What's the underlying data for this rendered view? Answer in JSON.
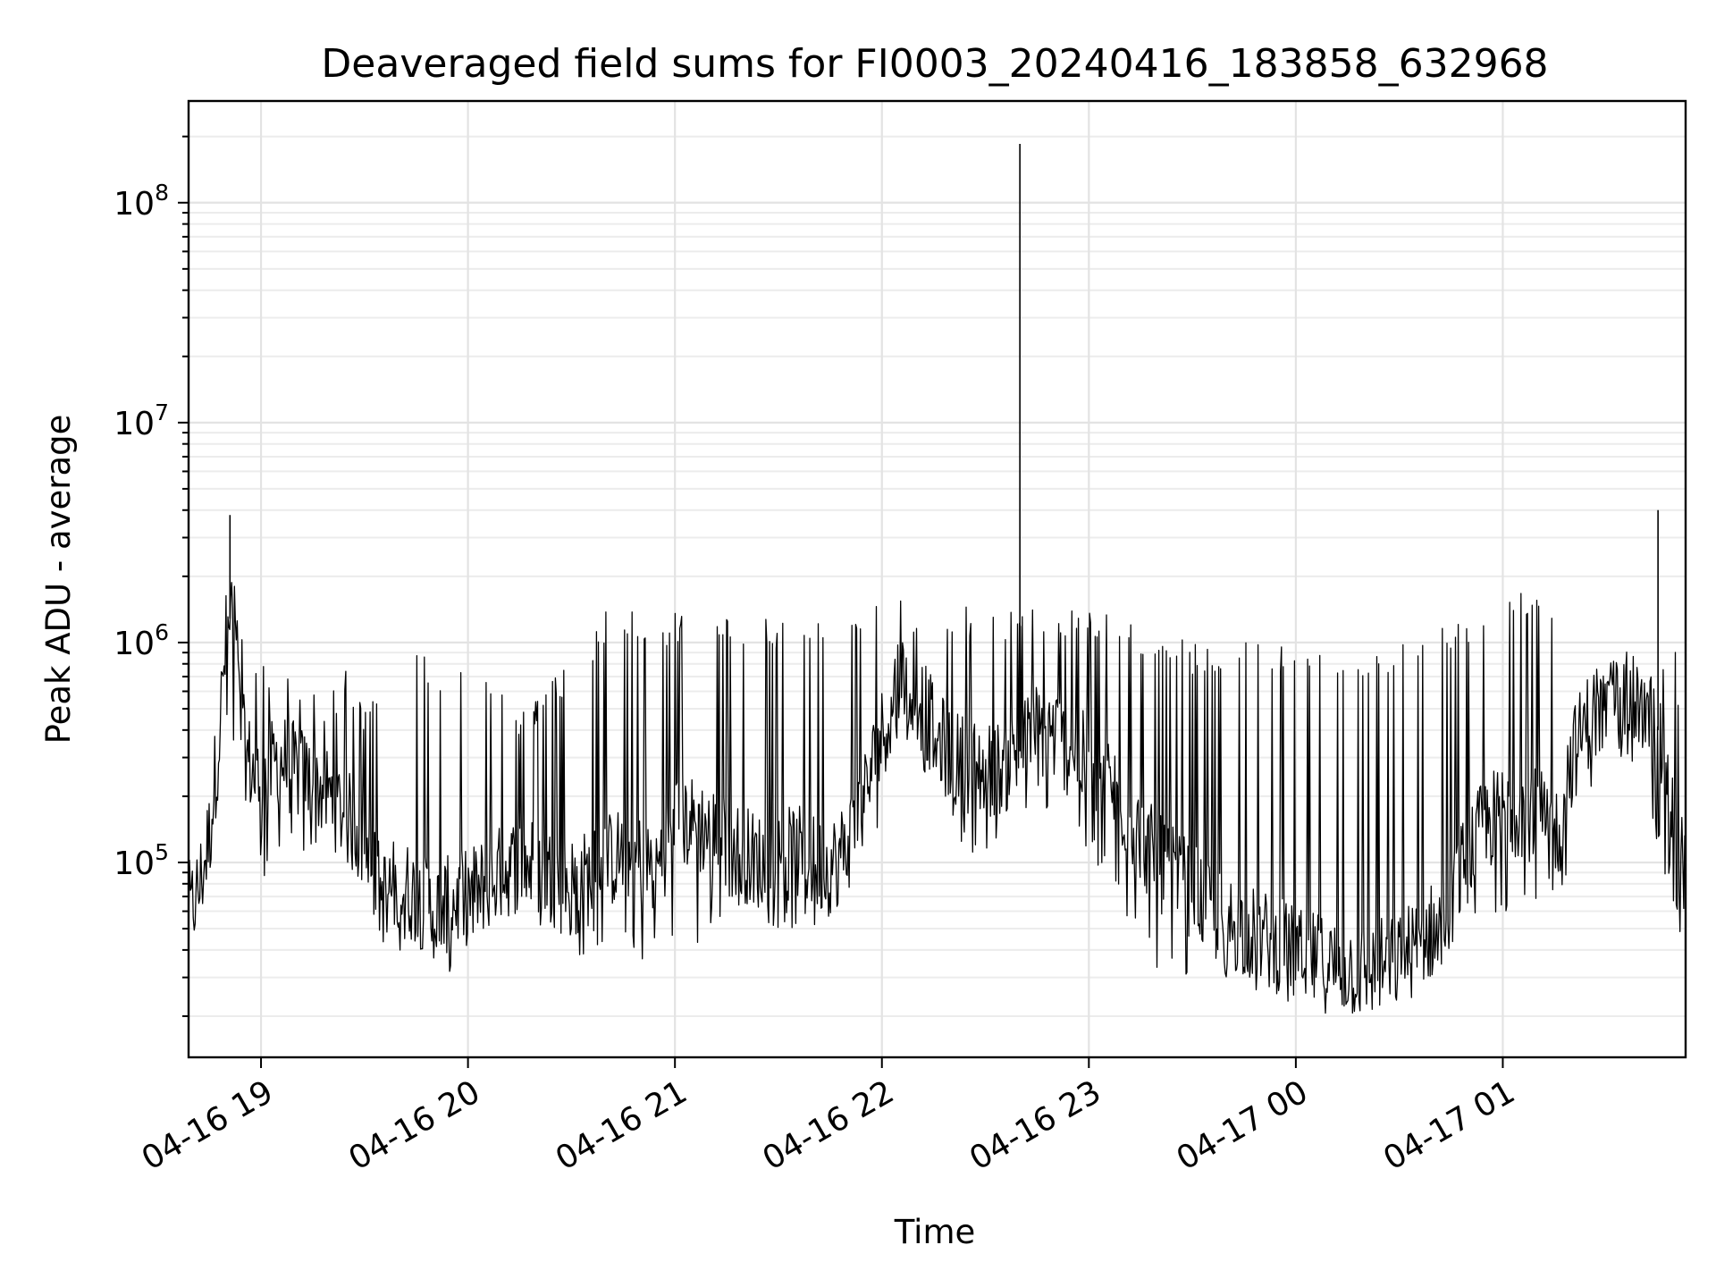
{
  "chart_data": {
    "type": "line",
    "title": "Deaveraged field sums for FI0003_20240416_183858_632968",
    "xlabel": "Time",
    "ylabel": "Peak ADU - average",
    "y_scale": "log",
    "y_major_ticks": [
      {
        "base": "10",
        "exp": "5",
        "value": 100000
      },
      {
        "base": "10",
        "exp": "6",
        "value": 1000000
      },
      {
        "base": "10",
        "exp": "7",
        "value": 10000000
      },
      {
        "base": "10",
        "exp": "8",
        "value": 100000000
      }
    ],
    "ylim": [
      13000,
      290000000
    ],
    "xlim": [
      "2024-04-16 18:39",
      "2024-04-17 01:53"
    ],
    "x_ticks": [
      {
        "label": "04-16 19",
        "time": "2024-04-16 19:00"
      },
      {
        "label": "04-16 20",
        "time": "2024-04-16 20:00"
      },
      {
        "label": "04-16 21",
        "time": "2024-04-16 21:00"
      },
      {
        "label": "04-16 22",
        "time": "2024-04-16 22:00"
      },
      {
        "label": "04-16 23",
        "time": "2024-04-16 23:00"
      },
      {
        "label": "04-17 00",
        "time": "2024-04-17 00:00"
      },
      {
        "label": "04-17 01",
        "time": "2024-04-17 01:00"
      }
    ],
    "grid": true,
    "line_color": "#000000",
    "series": [
      {
        "x": [
          "2024-04-16 18:39",
          "2024-04-16 18:42",
          "2024-04-16 18:45",
          "2024-04-16 18:48",
          "2024-04-16 18:50",
          "2024-04-16 18:52",
          "2024-04-16 18:54",
          "2024-04-16 18:56",
          "2024-04-16 18:58",
          "2024-04-16 19:00",
          "2024-04-16 19:05",
          "2024-04-16 19:10",
          "2024-04-16 19:15",
          "2024-04-16 19:20",
          "2024-04-16 19:25",
          "2024-04-16 19:30",
          "2024-04-16 19:35",
          "2024-04-16 19:40",
          "2024-04-16 19:45",
          "2024-04-16 19:50",
          "2024-04-16 19:55",
          "2024-04-16 20:00",
          "2024-04-16 20:05",
          "2024-04-16 20:10",
          "2024-04-16 20:15",
          "2024-04-16 20:20",
          "2024-04-16 20:25",
          "2024-04-16 20:30",
          "2024-04-16 20:35",
          "2024-04-16 20:40",
          "2024-04-16 20:45",
          "2024-04-16 20:50",
          "2024-04-16 20:55",
          "2024-04-16 21:00",
          "2024-04-16 21:05",
          "2024-04-16 21:10",
          "2024-04-16 21:15",
          "2024-04-16 21:20",
          "2024-04-16 21:25",
          "2024-04-16 21:30",
          "2024-04-16 21:35",
          "2024-04-16 21:40",
          "2024-04-16 21:45",
          "2024-04-16 21:50",
          "2024-04-16 21:55",
          "2024-04-16 22:00",
          "2024-04-16 22:05",
          "2024-04-16 22:10",
          "2024-04-16 22:15",
          "2024-04-16 22:20",
          "2024-04-16 22:25",
          "2024-04-16 22:30",
          "2024-04-16 22:35",
          "2024-04-16 22:40",
          "2024-04-16 22:45",
          "2024-04-16 22:50",
          "2024-04-16 22:55",
          "2024-04-16 23:00",
          "2024-04-16 23:05",
          "2024-04-16 23:10",
          "2024-04-16 23:15",
          "2024-04-16 23:20",
          "2024-04-16 23:25",
          "2024-04-16 23:30",
          "2024-04-16 23:35",
          "2024-04-16 23:40",
          "2024-04-16 23:45",
          "2024-04-16 23:50",
          "2024-04-16 23:55",
          "2024-04-17 00:00",
          "2024-04-17 00:05",
          "2024-04-17 00:10",
          "2024-04-17 00:15",
          "2024-04-17 00:20",
          "2024-04-17 00:25",
          "2024-04-17 00:30",
          "2024-04-17 00:35",
          "2024-04-17 00:40",
          "2024-04-17 00:45",
          "2024-04-17 00:50",
          "2024-04-17 00:55",
          "2024-04-17 01:00",
          "2024-04-17 01:05",
          "2024-04-17 01:10",
          "2024-04-17 01:15",
          "2024-04-17 01:20",
          "2024-04-17 01:25",
          "2024-04-17 01:30",
          "2024-04-17 01:35",
          "2024-04-17 01:40",
          "2024-04-17 01:45",
          "2024-04-17 01:50",
          "2024-04-17 01:53"
        ],
        "y": [
          60000,
          75000,
          130000,
          400000,
          1100000,
          1500000,
          400000,
          300000,
          250000,
          220000,
          300000,
          260000,
          230000,
          200000,
          160000,
          120000,
          70000,
          80000,
          70000,
          60000,
          65000,
          70000,
          80000,
          90000,
          100000,
          95000,
          85000,
          80000,
          85000,
          100000,
          110000,
          100000,
          95000,
          160000,
          150000,
          140000,
          120000,
          110000,
          100000,
          105000,
          110000,
          100000,
          95000,
          120000,
          200000,
          380000,
          700000,
          600000,
          400000,
          300000,
          280000,
          260000,
          270000,
          320000,
          400000,
          380000,
          320000,
          280000,
          240000,
          180000,
          130000,
          100000,
          85000,
          75000,
          60000,
          55000,
          50000,
          45000,
          42000,
          38000,
          36000,
          34000,
          33000,
          32000,
          34000,
          36000,
          42000,
          50000,
          70000,
          110000,
          150000,
          170000,
          180000,
          160000,
          140000,
          300000,
          450000,
          500000,
          550000,
          500000,
          400000,
          150000,
          90000
        ]
      }
    ],
    "spikes": [
      {
        "time": "2024-04-16 18:51",
        "value": 3800000
      },
      {
        "time": "2024-04-16 22:40",
        "value": 185000000
      },
      {
        "time": "2024-04-17 01:45",
        "value": 4000000
      }
    ],
    "band": {
      "upper": [
        70000,
        90000,
        160000,
        500000,
        1400000,
        1600000,
        1200000,
        1000000,
        900000,
        800000,
        900000,
        700000,
        650000,
        600000,
        800000,
        500000,
        600000,
        900000,
        1000000,
        800000,
        700000,
        900000,
        800000,
        600000,
        500000,
        600000,
        700000,
        800000,
        1000000,
        1400000,
        1500000,
        1300000,
        1200000,
        1400000,
        1350000,
        1300000,
        1300000,
        1350000,
        1300000,
        1300000,
        1300000,
        1300000,
        1300000,
        1300000,
        1400000,
        1500000,
        1550000,
        1500000,
        1500000,
        1450000,
        1450000,
        1450000,
        1450000,
        1450000,
        1450000,
        1450000,
        1450000,
        1450000,
        1400000,
        1300000,
        1200000,
        1100000,
        1050000,
        1000000,
        1000000,
        1000000,
        1000000,
        1000000,
        1000000,
        1000000,
        1000000,
        1000000,
        950000,
        950000,
        1000000,
        1000000,
        1100000,
        1250000,
        1300000,
        1350000,
        1400000,
        1500000,
        1700000,
        1800000,
        1600000,
        1400000,
        1000000,
        900000,
        800000,
        700000,
        900000,
        1000000,
        300000
      ],
      "lower": [
        55000,
        60000,
        100000,
        300000,
        400000,
        300000,
        80000,
        80000,
        75000,
        80000,
        100000,
        100000,
        120000,
        130000,
        110000,
        80000,
        40000,
        40000,
        38000,
        35000,
        30000,
        40000,
        50000,
        50000,
        45000,
        40000,
        45000,
        40000,
        35000,
        45000,
        35000,
        32000,
        33000,
        35000,
        40000,
        45000,
        55000,
        60000,
        55000,
        50000,
        50000,
        50000,
        45000,
        60000,
        90000,
        150000,
        400000,
        300000,
        200000,
        160000,
        100000,
        90000,
        100000,
        150000,
        180000,
        150000,
        120000,
        100000,
        80000,
        60000,
        40000,
        32000,
        30000,
        28000,
        26000,
        25000,
        24000,
        23000,
        22000,
        23000,
        22000,
        21000,
        20000,
        21000,
        23000,
        25000,
        25000,
        27000,
        30000,
        40000,
        45000,
        50000,
        60000,
        60000,
        60000,
        100000,
        200000,
        280000,
        300000,
        250000,
        100000,
        60000,
        33000
      ]
    }
  }
}
